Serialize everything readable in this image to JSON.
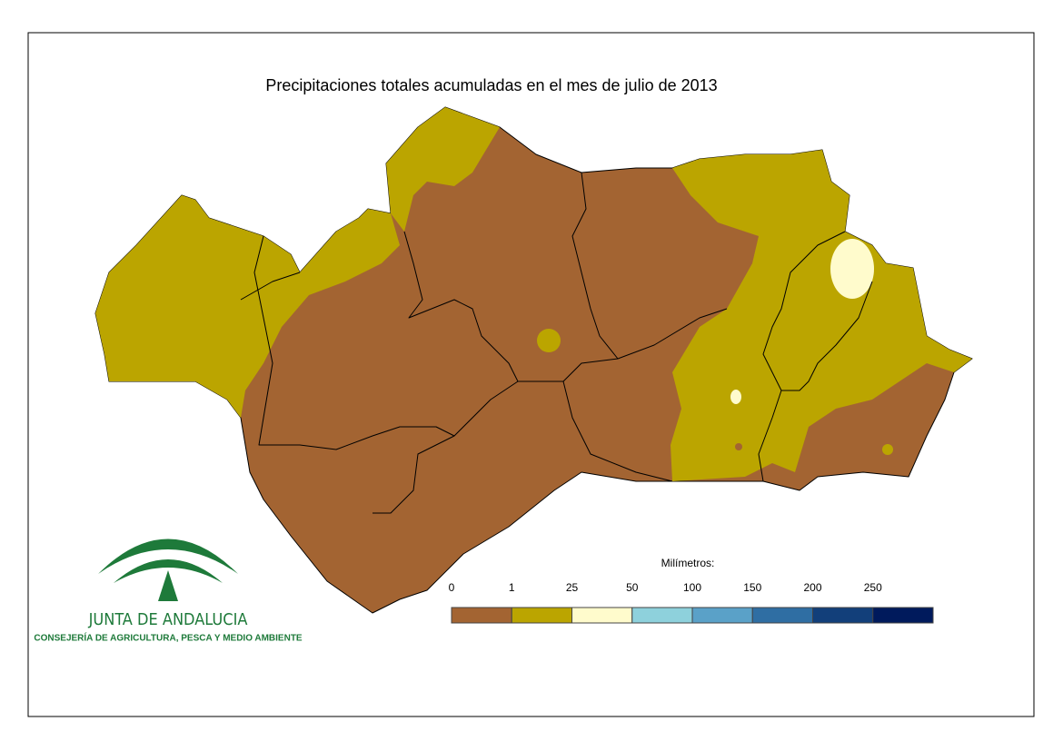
{
  "title": "Precipitaciones totales acumuladas en el mes de julio de 2013",
  "legend": {
    "title": "Milímetros:",
    "ticks": [
      0,
      1,
      25,
      50,
      100,
      150,
      200,
      250
    ],
    "colors": [
      "#a36432",
      "#bba500",
      "#fffbcc",
      "#8ed1dc",
      "#5aa1c8",
      "#2f6ea3",
      "#123f7a",
      "#001a5c"
    ]
  },
  "logo": {
    "name": "JUNTA DE ANDALUCIA",
    "department": "CONSEJERÍA DE AGRICULTURA, PESCA Y MEDIO AMBIENTE"
  }
}
